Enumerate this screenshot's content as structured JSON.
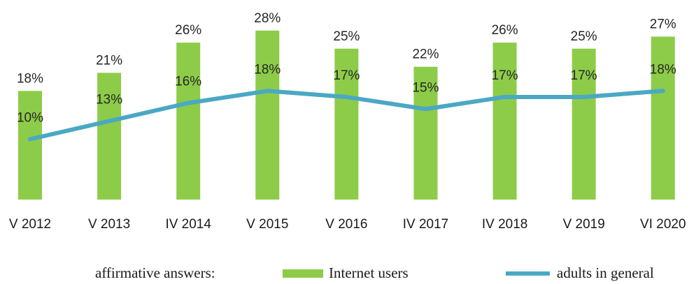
{
  "chart_data": {
    "type": "bar",
    "categories": [
      "V 2012",
      "V 2013",
      "IV 2014",
      "V 2015",
      "V 2016",
      "IV 2017",
      "IV 2018",
      "V 2019",
      "VI 2020"
    ],
    "series": [
      {
        "name": "Internet users",
        "type": "bar",
        "color": "#8dcc48",
        "values": [
          18,
          21,
          26,
          28,
          25,
          22,
          26,
          25,
          27
        ],
        "labels": [
          "18%",
          "21%",
          "26%",
          "28%",
          "25%",
          "22%",
          "26%",
          "25%",
          "27%"
        ]
      },
      {
        "name": "adults in general",
        "type": "line",
        "color": "#4aa8c4",
        "values": [
          10,
          13,
          16,
          18,
          17,
          15,
          17,
          17,
          18
        ],
        "labels": [
          "10%",
          "13%",
          "16%",
          "18%",
          "17%",
          "15%",
          "17%",
          "17%",
          "18%"
        ]
      }
    ],
    "legend_title": "affirmative answers:",
    "legend_position": "bottom",
    "unit": "%",
    "grid": false
  }
}
